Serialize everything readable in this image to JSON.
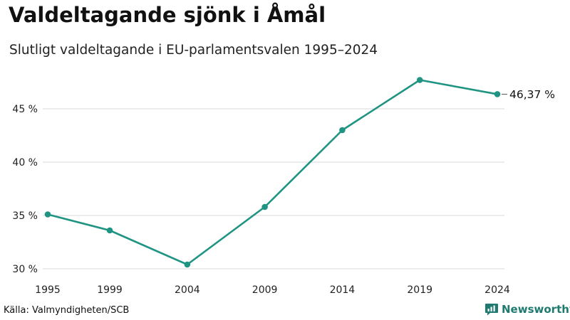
{
  "header": {
    "title": "Valdeltagande sjönk i Åmål",
    "subtitle": "Slutligt valdeltagande i EU-parlamentsvalen 1995–2024"
  },
  "chart_data": {
    "type": "line",
    "title": "Valdeltagande sjönk i Åmål",
    "subtitle": "Slutligt valdeltagande i EU-parlamentsvalen 1995–2024",
    "xlabel": "",
    "ylabel": "",
    "x": [
      1995,
      1999,
      2004,
      2009,
      2014,
      2019,
      2024
    ],
    "x_tick_labels": [
      "1995",
      "1999",
      "2004",
      "2009",
      "2014",
      "2019",
      "2024"
    ],
    "series": [
      {
        "name": "Valdeltagande",
        "values": [
          35.1,
          33.6,
          30.4,
          35.8,
          43.0,
          47.7,
          46.37
        ],
        "color": "#1f9483"
      }
    ],
    "y_ticks": [
      30,
      35,
      40,
      45
    ],
    "y_tick_labels": [
      "30 %",
      "35 %",
      "40 %",
      "45 %"
    ],
    "ylim": [
      30,
      48
    ],
    "xlim": [
      1995,
      2024
    ],
    "end_label": "46,37 %",
    "grid": true,
    "legend": "none"
  },
  "footer": {
    "source": "Källa: Valmyndigheten/SCB",
    "brand": "Newsworthy"
  },
  "colors": {
    "line": "#1f9483",
    "grid": "#d9d9d9",
    "brand": "#1f7a70"
  }
}
